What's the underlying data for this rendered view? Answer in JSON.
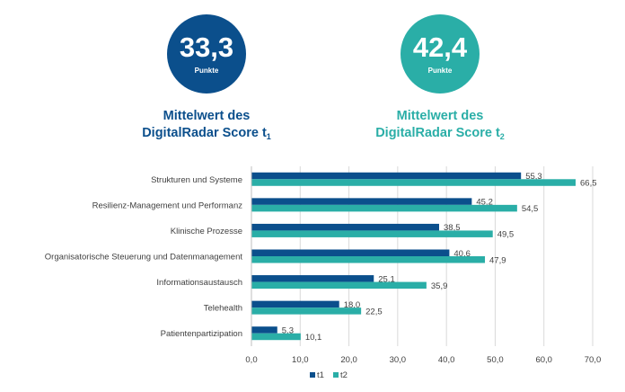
{
  "scores": [
    {
      "value": "33,3",
      "unit": "Punkte",
      "caption_line1": "Mittelwert des",
      "caption_line2": "DigitalRadar Score t",
      "caption_sub": "1",
      "color": "#0b4f8c"
    },
    {
      "value": "42,4",
      "unit": "Punkte",
      "caption_line1": "Mittelwert des",
      "caption_line2": "DigitalRadar Score t",
      "caption_sub": "2",
      "color": "#2aaea7"
    }
  ],
  "chart_data": {
    "type": "bar",
    "orientation": "horizontal",
    "categories": [
      "Strukturen und Systeme",
      "Resilienz-Management und Performanz",
      "Klinische Prozesse",
      "Organisatorische Steuerung und Datenmanagement",
      "Informationsaustausch",
      "Telehealth",
      "Patientenpartizipation"
    ],
    "series": [
      {
        "name": "t1",
        "values": [
          55.3,
          45.2,
          38.5,
          40.6,
          25.1,
          18.0,
          5.3
        ],
        "labels": [
          "55,3",
          "45,2",
          "38,5",
          "40,6",
          "25,1",
          "18,0",
          "5,3"
        ],
        "color": "#0b4f8c"
      },
      {
        "name": "t2",
        "values": [
          66.5,
          54.5,
          49.5,
          47.9,
          35.9,
          22.5,
          10.1
        ],
        "labels": [
          "66,5",
          "54,5",
          "49,5",
          "47,9",
          "35,9",
          "22,5",
          "10,1"
        ],
        "color": "#2aaea7"
      }
    ],
    "xlim": [
      0,
      70
    ],
    "ticks": [
      "0,0",
      "10,0",
      "20,0",
      "30,0",
      "40,0",
      "50,0",
      "60,0",
      "70,0"
    ],
    "grid": true,
    "legend_position": "bottom"
  }
}
